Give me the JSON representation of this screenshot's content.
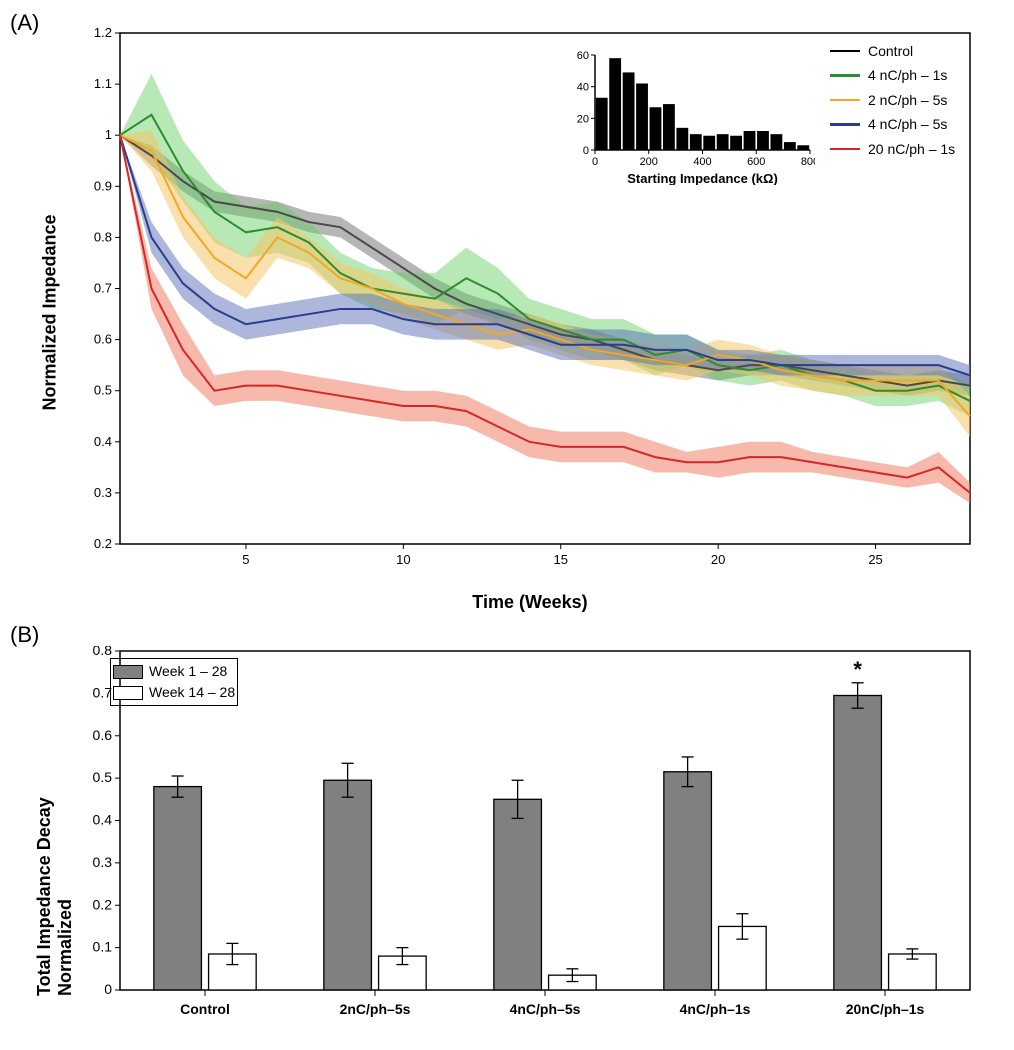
{
  "panelA": {
    "label": "(A)",
    "ylabel": "Normalized Impedance",
    "xlabel": "Time (Weeks)",
    "ylim": [
      0.2,
      1.2
    ],
    "xlim": [
      1,
      28
    ],
    "yticks": [
      0.2,
      0.3,
      0.4,
      0.5,
      0.6,
      0.7,
      0.8,
      0.9,
      1,
      1.1,
      1.2
    ],
    "xticks": [
      5,
      10,
      15,
      20,
      25
    ],
    "label_fontsize": 18,
    "tick_fontsize": 13,
    "background_color": "#ffffff",
    "legend": [
      {
        "label": "Control",
        "color": "#000000"
      },
      {
        "label": "4 nC/ph – 1s",
        "color": "#2e8b2e"
      },
      {
        "label": "2 nC/ph – 5s",
        "color": "#f5a623"
      },
      {
        "label": "4 nC/ph – 5s",
        "color": "#2a3d8f"
      },
      {
        "label": "20 nC/ph – 1s",
        "color": "#d62728"
      }
    ],
    "series": [
      {
        "name": "Control",
        "color": "#4a4a4a",
        "band_color": "#7a7a7a",
        "band_opacity": 0.55,
        "x": [
          1,
          2,
          3,
          4,
          5,
          6,
          7,
          8,
          9,
          10,
          11,
          12,
          13,
          14,
          15,
          16,
          17,
          18,
          19,
          20,
          21,
          22,
          23,
          24,
          25,
          26,
          27,
          28
        ],
        "y": [
          1.0,
          0.96,
          0.91,
          0.87,
          0.86,
          0.85,
          0.83,
          0.82,
          0.78,
          0.74,
          0.7,
          0.67,
          0.65,
          0.63,
          0.61,
          0.6,
          0.58,
          0.56,
          0.55,
          0.54,
          0.55,
          0.55,
          0.54,
          0.53,
          0.52,
          0.51,
          0.52,
          0.51
        ],
        "err": [
          0.0,
          0.02,
          0.02,
          0.02,
          0.02,
          0.02,
          0.02,
          0.02,
          0.02,
          0.02,
          0.02,
          0.02,
          0.02,
          0.02,
          0.02,
          0.02,
          0.02,
          0.02,
          0.02,
          0.02,
          0.02,
          0.02,
          0.02,
          0.02,
          0.02,
          0.02,
          0.02,
          0.02
        ]
      },
      {
        "name": "4 nC/ph – 1s",
        "color": "#2e8b2e",
        "band_color": "#5fcf5f",
        "band_opacity": 0.45,
        "x": [
          1,
          2,
          3,
          4,
          5,
          6,
          7,
          8,
          9,
          10,
          11,
          12,
          13,
          14,
          15,
          16,
          17,
          18,
          19,
          20,
          21,
          22,
          23,
          24,
          25,
          26,
          27,
          28
        ],
        "y": [
          1.0,
          1.04,
          0.93,
          0.85,
          0.81,
          0.82,
          0.79,
          0.73,
          0.7,
          0.69,
          0.68,
          0.72,
          0.69,
          0.64,
          0.62,
          0.6,
          0.6,
          0.57,
          0.58,
          0.55,
          0.54,
          0.55,
          0.53,
          0.52,
          0.5,
          0.5,
          0.51,
          0.48
        ],
        "err": [
          0.0,
          0.08,
          0.06,
          0.06,
          0.05,
          0.05,
          0.04,
          0.04,
          0.04,
          0.04,
          0.05,
          0.06,
          0.05,
          0.04,
          0.04,
          0.04,
          0.04,
          0.04,
          0.03,
          0.03,
          0.03,
          0.03,
          0.03,
          0.03,
          0.03,
          0.03,
          0.03,
          0.03
        ]
      },
      {
        "name": "2 nC/ph – 5s",
        "color": "#f5a623",
        "band_color": "#f5c66a",
        "band_opacity": 0.55,
        "x": [
          1,
          2,
          3,
          4,
          5,
          6,
          7,
          8,
          9,
          10,
          11,
          12,
          13,
          14,
          15,
          16,
          17,
          18,
          19,
          20,
          21,
          22,
          23,
          24,
          25,
          26,
          27,
          28
        ],
        "y": [
          1.0,
          0.97,
          0.84,
          0.76,
          0.72,
          0.8,
          0.77,
          0.72,
          0.7,
          0.67,
          0.65,
          0.63,
          0.61,
          0.62,
          0.6,
          0.58,
          0.57,
          0.56,
          0.55,
          0.57,
          0.56,
          0.54,
          0.53,
          0.52,
          0.52,
          0.52,
          0.52,
          0.45
        ],
        "err": [
          0.0,
          0.04,
          0.04,
          0.04,
          0.04,
          0.04,
          0.03,
          0.03,
          0.03,
          0.03,
          0.03,
          0.03,
          0.03,
          0.03,
          0.03,
          0.03,
          0.03,
          0.03,
          0.03,
          0.03,
          0.03,
          0.03,
          0.03,
          0.03,
          0.03,
          0.03,
          0.03,
          0.04
        ]
      },
      {
        "name": "4 nC/ph – 5s",
        "color": "#2a3d8f",
        "band_color": "#5a6fb8",
        "band_opacity": 0.5,
        "x": [
          1,
          2,
          3,
          4,
          5,
          6,
          7,
          8,
          9,
          10,
          11,
          12,
          13,
          14,
          15,
          16,
          17,
          18,
          19,
          20,
          21,
          22,
          23,
          24,
          25,
          26,
          27,
          28
        ],
        "y": [
          1.0,
          0.8,
          0.71,
          0.66,
          0.63,
          0.64,
          0.65,
          0.66,
          0.66,
          0.64,
          0.63,
          0.63,
          0.63,
          0.61,
          0.59,
          0.59,
          0.59,
          0.58,
          0.58,
          0.56,
          0.56,
          0.55,
          0.55,
          0.55,
          0.55,
          0.55,
          0.55,
          0.53
        ],
        "err": [
          0.0,
          0.03,
          0.03,
          0.03,
          0.03,
          0.03,
          0.03,
          0.03,
          0.03,
          0.03,
          0.03,
          0.03,
          0.03,
          0.03,
          0.03,
          0.03,
          0.03,
          0.03,
          0.03,
          0.02,
          0.02,
          0.02,
          0.02,
          0.02,
          0.02,
          0.02,
          0.02,
          0.02
        ]
      },
      {
        "name": "20 nC/ph – 1s",
        "color": "#d62728",
        "band_color": "#f08066",
        "band_opacity": 0.55,
        "x": [
          1,
          2,
          3,
          4,
          5,
          6,
          7,
          8,
          9,
          10,
          11,
          12,
          13,
          14,
          15,
          16,
          17,
          18,
          19,
          20,
          21,
          22,
          23,
          24,
          25,
          26,
          27,
          28
        ],
        "y": [
          1.0,
          0.7,
          0.58,
          0.5,
          0.51,
          0.51,
          0.5,
          0.49,
          0.48,
          0.47,
          0.47,
          0.46,
          0.43,
          0.4,
          0.39,
          0.39,
          0.39,
          0.37,
          0.36,
          0.36,
          0.37,
          0.37,
          0.36,
          0.35,
          0.34,
          0.33,
          0.35,
          0.3
        ],
        "err": [
          0.0,
          0.04,
          0.05,
          0.03,
          0.03,
          0.03,
          0.03,
          0.03,
          0.03,
          0.03,
          0.03,
          0.03,
          0.03,
          0.03,
          0.03,
          0.03,
          0.03,
          0.03,
          0.02,
          0.03,
          0.03,
          0.03,
          0.02,
          0.02,
          0.02,
          0.02,
          0.03,
          0.02
        ]
      }
    ],
    "inset": {
      "xlabel": "Starting Impedance (kΩ)",
      "xlim": [
        0,
        800
      ],
      "ylim": [
        0,
        60
      ],
      "xticks": [
        0,
        200,
        400,
        600,
        800
      ],
      "yticks": [
        0,
        20,
        40,
        60
      ],
      "bar_color": "#000000",
      "bins": [
        50,
        100,
        150,
        200,
        250,
        300,
        350,
        400,
        450,
        500,
        550,
        600,
        650,
        700,
        750,
        800
      ],
      "counts": [
        33,
        58,
        49,
        42,
        27,
        29,
        14,
        10,
        9,
        10,
        9,
        12,
        12,
        10,
        5,
        3
      ],
      "label_fontsize": 13,
      "tick_fontsize": 11
    }
  },
  "panelB": {
    "label": "(B)",
    "ylabel": "Total Impedance Decay Normalized",
    "ylim": [
      0,
      0.8
    ],
    "yticks": [
      0,
      0.1,
      0.2,
      0.3,
      0.4,
      0.5,
      0.6,
      0.7,
      0.8
    ],
    "categories": [
      "Control",
      "2nC/ph–5s",
      "4nC/ph–5s",
      "4nC/ph–1s",
      "20nC/ph–1s"
    ],
    "legend": [
      {
        "label": "Week 1 – 28",
        "fill": "#808080"
      },
      {
        "label": "Week 14 – 28",
        "fill": "#ffffff"
      }
    ],
    "label_fontsize": 18,
    "tick_fontsize": 14,
    "bar_border": "#000000",
    "groups": [
      {
        "cat": "Control",
        "week1_28": 0.48,
        "err1": 0.025,
        "week14_28": 0.085,
        "err2": 0.025,
        "sig": false
      },
      {
        "cat": "2nC/ph–5s",
        "week1_28": 0.495,
        "err1": 0.04,
        "week14_28": 0.08,
        "err2": 0.02,
        "sig": false
      },
      {
        "cat": "4nC/ph–5s",
        "week1_28": 0.45,
        "err1": 0.045,
        "week14_28": 0.035,
        "err2": 0.015,
        "sig": false
      },
      {
        "cat": "4nC/ph–1s",
        "week1_28": 0.515,
        "err1": 0.035,
        "week14_28": 0.15,
        "err2": 0.03,
        "sig": false
      },
      {
        "cat": "20nC/ph–1s",
        "week1_28": 0.695,
        "err1": 0.03,
        "week14_28": 0.085,
        "err2": 0.012,
        "sig": true
      }
    ],
    "significance_marker": "*"
  }
}
